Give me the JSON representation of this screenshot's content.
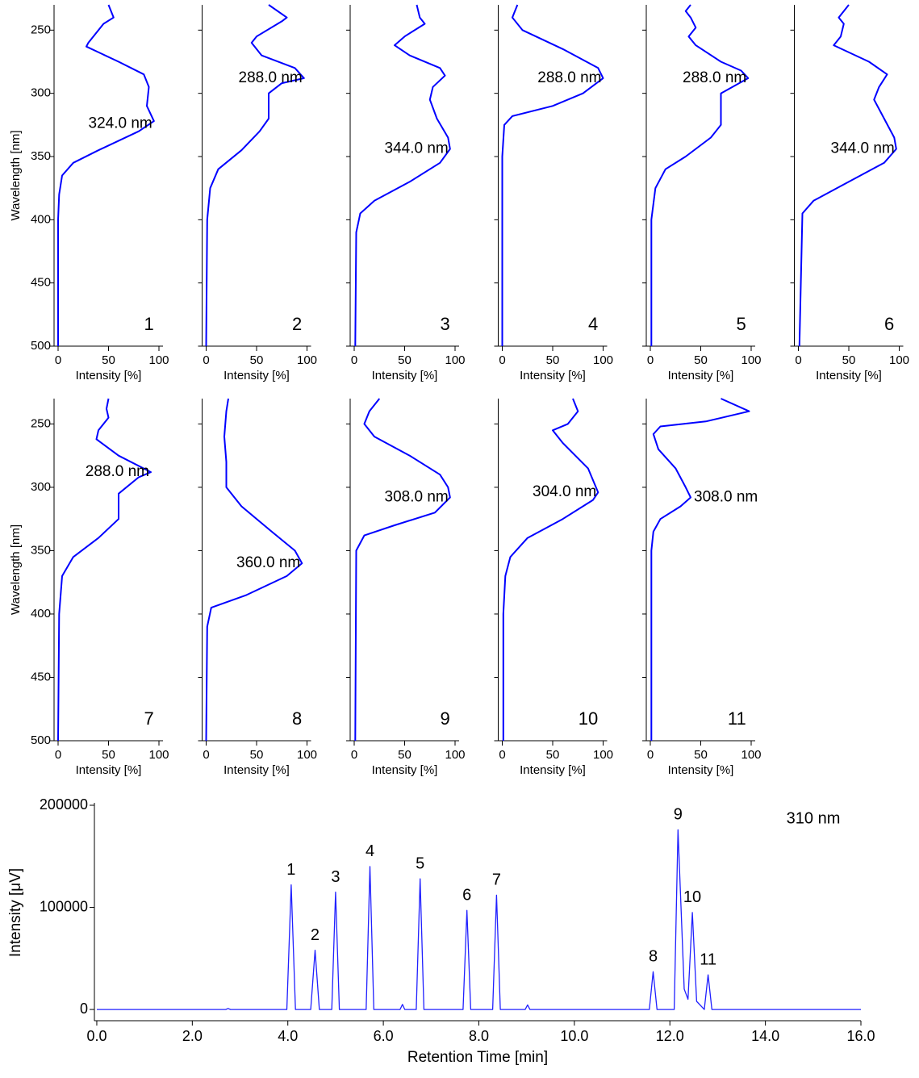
{
  "chart_data": [
    {
      "type": "spectrum",
      "label": "1",
      "xlabel": "Intensity [%]",
      "ylabel": "Wavelength [nm]",
      "ytick_labels": true,
      "color": "#0000ff",
      "x": [
        230,
        240,
        245,
        260,
        263,
        275,
        285,
        295,
        310,
        322,
        330,
        345,
        355,
        365,
        380,
        400,
        500
      ],
      "values": [
        50,
        55,
        45,
        30,
        28,
        60,
        85,
        90,
        88,
        95,
        80,
        40,
        15,
        4,
        1,
        0,
        0
      ],
      "xlim": [
        -4,
        104
      ],
      "xticks": [
        0,
        50,
        100
      ],
      "ylim": [
        230,
        500
      ],
      "yticks": [
        250,
        300,
        350,
        400,
        450,
        500
      ],
      "annotation": {
        "text": "324.0 nm",
        "x": 324,
        "value": 95,
        "anchor": "end"
      }
    },
    {
      "type": "spectrum",
      "label": "2",
      "xlabel": "Intensity [%]",
      "ytick_labels": false,
      "color": "#0000ff",
      "x": [
        230,
        240,
        243,
        255,
        260,
        270,
        280,
        288,
        292,
        300,
        310,
        320,
        330,
        345,
        360,
        375,
        400,
        500
      ],
      "values": [
        62,
        80,
        75,
        50,
        45,
        55,
        88,
        97,
        75,
        62,
        62,
        62,
        53,
        35,
        12,
        4,
        1,
        0
      ],
      "xlim": [
        -4,
        104
      ],
      "xticks": [
        0,
        50,
        100
      ],
      "ylim": [
        230,
        500
      ],
      "yticks": [
        250,
        300,
        350,
        400,
        450,
        500
      ],
      "annotation": {
        "text": "288.0 nm",
        "x": 288,
        "value": 97,
        "anchor": "end"
      }
    },
    {
      "type": "spectrum",
      "label": "3",
      "xlabel": "Intensity [%]",
      "ytick_labels": false,
      "color": "#0000ff",
      "x": [
        230,
        240,
        245,
        255,
        262,
        270,
        280,
        286,
        295,
        305,
        320,
        335,
        344,
        355,
        370,
        385,
        395,
        410,
        500
      ],
      "values": [
        62,
        65,
        70,
        50,
        40,
        55,
        85,
        90,
        78,
        75,
        82,
        93,
        95,
        85,
        55,
        20,
        6,
        2,
        1
      ],
      "xlim": [
        -4,
        104
      ],
      "xticks": [
        0,
        50,
        100
      ],
      "ylim": [
        230,
        500
      ],
      "yticks": [
        250,
        300,
        350,
        400,
        450,
        500
      ],
      "annotation": {
        "text": "344.0 nm",
        "x": 344,
        "value": 95,
        "anchor": "end"
      }
    },
    {
      "type": "spectrum",
      "label": "4",
      "xlabel": "Intensity [%]",
      "ytick_labels": false,
      "color": "#0000ff",
      "x": [
        230,
        240,
        250,
        265,
        280,
        288,
        300,
        310,
        318,
        325,
        350,
        500
      ],
      "values": [
        15,
        10,
        20,
        60,
        95,
        100,
        80,
        50,
        10,
        2,
        0,
        0
      ],
      "xlim": [
        -4,
        104
      ],
      "xticks": [
        0,
        50,
        100
      ],
      "ylim": [
        230,
        500
      ],
      "yticks": [
        250,
        300,
        350,
        400,
        450,
        500
      ],
      "annotation": {
        "text": "288.0 nm",
        "x": 288,
        "value": 100,
        "anchor": "end"
      }
    },
    {
      "type": "spectrum",
      "label": "5",
      "xlabel": "Intensity [%]",
      "ytick_labels": false,
      "color": "#0000ff",
      "x": [
        230,
        235,
        240,
        248,
        255,
        262,
        275,
        282,
        288,
        300,
        310,
        325,
        335,
        350,
        360,
        375,
        400,
        500
      ],
      "values": [
        40,
        35,
        40,
        45,
        38,
        45,
        70,
        90,
        97,
        70,
        70,
        70,
        60,
        35,
        15,
        5,
        1,
        1
      ],
      "xlim": [
        -4,
        104
      ],
      "xticks": [
        0,
        50,
        100
      ],
      "ylim": [
        230,
        500
      ],
      "yticks": [
        250,
        300,
        350,
        400,
        450,
        500
      ],
      "annotation": {
        "text": "288.0 nm",
        "x": 288,
        "value": 97,
        "anchor": "end"
      }
    },
    {
      "type": "spectrum",
      "label": "6",
      "xlabel": "Intensity [%]",
      "ytick_labels": false,
      "color": "#0000ff",
      "x": [
        230,
        240,
        245,
        255,
        262,
        275,
        285,
        295,
        305,
        320,
        335,
        344,
        355,
        370,
        385,
        395,
        500
      ],
      "values": [
        50,
        40,
        45,
        42,
        35,
        70,
        88,
        80,
        75,
        85,
        95,
        97,
        85,
        50,
        15,
        4,
        1
      ],
      "xlim": [
        -4,
        104
      ],
      "xticks": [
        0,
        50,
        100
      ],
      "ylim": [
        230,
        500
      ],
      "yticks": [
        250,
        300,
        350,
        400,
        450,
        500
      ],
      "annotation": {
        "text": "344.0 nm",
        "x": 344,
        "value": 97,
        "anchor": "end"
      }
    },
    {
      "type": "spectrum",
      "label": "7",
      "xlabel": "Intensity [%]",
      "ylabel": "Wavelength [nm]",
      "ytick_labels": true,
      "color": "#0000ff",
      "x": [
        230,
        238,
        245,
        255,
        262,
        275,
        288,
        292,
        305,
        315,
        325,
        340,
        355,
        370,
        400,
        500
      ],
      "values": [
        50,
        48,
        50,
        40,
        38,
        60,
        92,
        80,
        60,
        60,
        60,
        40,
        15,
        4,
        1,
        0
      ],
      "xlim": [
        -4,
        104
      ],
      "xticks": [
        0,
        50,
        100
      ],
      "ylim": [
        230,
        500
      ],
      "yticks": [
        250,
        300,
        350,
        400,
        450,
        500
      ],
      "annotation": {
        "text": "288.0 nm",
        "x": 288,
        "value": 92,
        "anchor": "end"
      }
    },
    {
      "type": "spectrum",
      "label": "8",
      "xlabel": "Intensity [%]",
      "ytick_labels": false,
      "color": "#0000ff",
      "x": [
        230,
        240,
        260,
        280,
        300,
        315,
        335,
        350,
        360,
        370,
        385,
        395,
        410,
        500
      ],
      "values": [
        22,
        20,
        18,
        20,
        20,
        35,
        65,
        88,
        95,
        80,
        40,
        5,
        1,
        0
      ],
      "xlim": [
        -4,
        104
      ],
      "xticks": [
        0,
        50,
        100
      ],
      "ylim": [
        230,
        500
      ],
      "yticks": [
        250,
        300,
        350,
        400,
        450,
        500
      ],
      "annotation": {
        "text": "360.0 nm",
        "x": 360,
        "value": 95,
        "anchor": "end"
      }
    },
    {
      "type": "spectrum",
      "label": "9",
      "xlabel": "Intensity [%]",
      "ytick_labels": false,
      "color": "#0000ff",
      "x": [
        230,
        240,
        250,
        260,
        275,
        290,
        300,
        308,
        320,
        330,
        338,
        350,
        500
      ],
      "values": [
        25,
        15,
        10,
        20,
        55,
        85,
        93,
        95,
        80,
        40,
        10,
        2,
        1
      ],
      "xlim": [
        -4,
        104
      ],
      "xticks": [
        0,
        50,
        100
      ],
      "ylim": [
        230,
        500
      ],
      "yticks": [
        250,
        300,
        350,
        400,
        450,
        500
      ],
      "annotation": {
        "text": "308.0 nm",
        "x": 308,
        "value": 95,
        "anchor": "end"
      }
    },
    {
      "type": "spectrum",
      "label": "10",
      "xlabel": "Intensity [%]",
      "ytick_labels": false,
      "color": "#0000ff",
      "x": [
        230,
        240,
        250,
        255,
        265,
        285,
        304,
        310,
        325,
        340,
        355,
        370,
        400,
        500
      ],
      "values": [
        70,
        75,
        65,
        50,
        60,
        85,
        95,
        90,
        60,
        25,
        8,
        3,
        1,
        1
      ],
      "xlim": [
        -4,
        104
      ],
      "xticks": [
        0,
        50,
        100
      ],
      "ylim": [
        230,
        500
      ],
      "yticks": [
        250,
        300,
        350,
        400,
        450,
        500
      ],
      "annotation": {
        "text": "304.0 nm",
        "x": 304,
        "value": 95,
        "anchor": "end"
      }
    },
    {
      "type": "spectrum",
      "label": "11",
      "xlabel": "Intensity [%]",
      "ytick_labels": false,
      "color": "#0000ff",
      "x": [
        230,
        240,
        248,
        252,
        258,
        270,
        285,
        300,
        308,
        315,
        325,
        335,
        350,
        500
      ],
      "values": [
        70,
        98,
        55,
        10,
        3,
        8,
        25,
        35,
        40,
        30,
        10,
        3,
        1,
        1
      ],
      "xlim": [
        -4,
        104
      ],
      "xticks": [
        0,
        50,
        100
      ],
      "ylim": [
        230,
        500
      ],
      "yticks": [
        250,
        300,
        350,
        400,
        450,
        500
      ],
      "annotation": {
        "text": "308.0 nm",
        "x": 308,
        "value": 40,
        "anchor": "start"
      }
    },
    {
      "type": "line",
      "title": "310 nm",
      "xlabel": "Retention Time [min]",
      "ylabel": "Intensity [μV]",
      "color": "#2020ff",
      "x": [
        0,
        2.7,
        2.75,
        2.8,
        3.98,
        4.07,
        4.16,
        4.48,
        4.57,
        4.66,
        4.92,
        5.0,
        5.08,
        5.64,
        5.72,
        5.8,
        6.35,
        6.4,
        6.45,
        6.69,
        6.77,
        6.85,
        7.67,
        7.75,
        7.83,
        8.29,
        8.37,
        8.45,
        8.97,
        9.02,
        9.07,
        11.57,
        11.65,
        11.73,
        12.09,
        12.17,
        12.3,
        12.38,
        12.47,
        12.56,
        12.72,
        12.8,
        12.88,
        16
      ],
      "values": [
        0,
        0,
        1000,
        0,
        0,
        122000,
        0,
        0,
        58000,
        0,
        0,
        115000,
        0,
        0,
        140000,
        0,
        0,
        5000,
        0,
        0,
        128000,
        0,
        0,
        97000,
        0,
        0,
        112000,
        0,
        0,
        4500,
        0,
        0,
        37000,
        0,
        0,
        176000,
        20000,
        10000,
        95000,
        8000,
        0,
        34000,
        0,
        0
      ],
      "xlim": [
        -0.05,
        16
      ],
      "ylim": [
        -11000,
        200000
      ],
      "xticks": [
        {
          "value": 0,
          "label": "0.0"
        },
        {
          "value": 2,
          "label": "2.0"
        },
        {
          "value": 4,
          "label": "4.0"
        },
        {
          "value": 6,
          "label": "6.0"
        },
        {
          "value": 8,
          "label": "8.0"
        },
        {
          "value": 10,
          "label": "10.0"
        },
        {
          "value": 12,
          "label": "12.0"
        },
        {
          "value": 14,
          "label": "14.0"
        },
        {
          "value": 16,
          "label": "16.0"
        }
      ],
      "yticks": [
        0,
        100000,
        200000
      ],
      "annotations": [
        {
          "text": "1",
          "x": 4.07,
          "y": 122000
        },
        {
          "text": "2",
          "x": 4.57,
          "y": 58000
        },
        {
          "text": "3",
          "x": 5.0,
          "y": 115000
        },
        {
          "text": "4",
          "x": 5.72,
          "y": 140000
        },
        {
          "text": "5",
          "x": 6.77,
          "y": 128000
        },
        {
          "text": "6",
          "x": 7.75,
          "y": 97000
        },
        {
          "text": "7",
          "x": 8.37,
          "y": 112000
        },
        {
          "text": "8",
          "x": 11.65,
          "y": 37000
        },
        {
          "text": "9",
          "x": 12.17,
          "y": 176000
        },
        {
          "text": "10",
          "x": 12.47,
          "y": 95000
        },
        {
          "text": "11",
          "x": 12.8,
          "y": 34000
        }
      ]
    }
  ]
}
